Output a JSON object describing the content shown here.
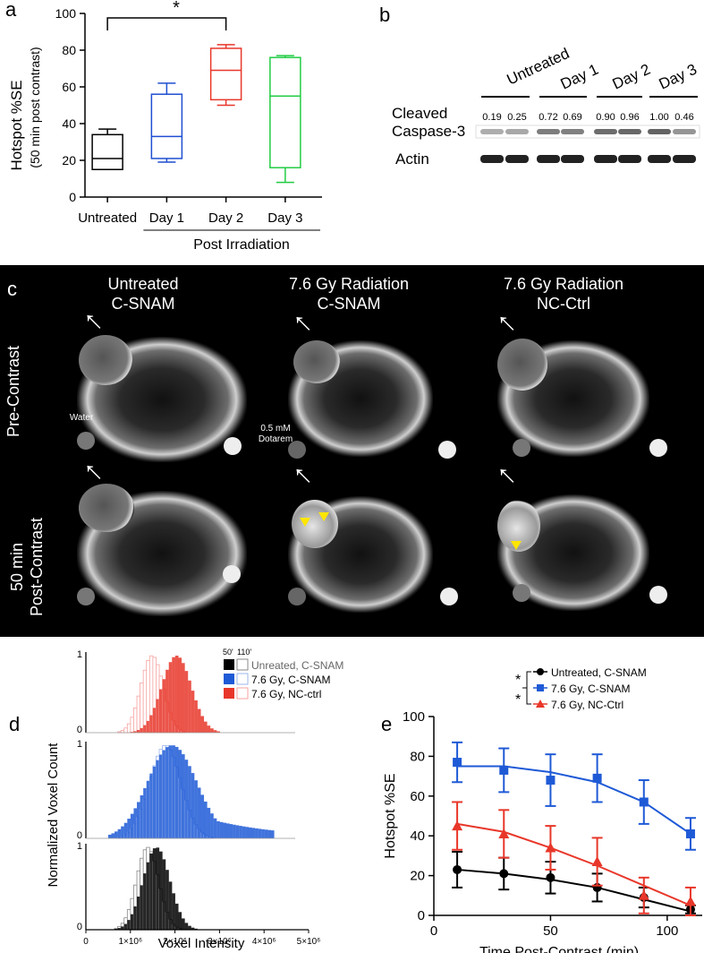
{
  "panel_labels": {
    "a": "a",
    "b": "b",
    "c": "c",
    "d": "d",
    "e": "e"
  },
  "panel_a": {
    "ylabel": "Hotspot %SE",
    "ylabel2": "(50 min post contrast)",
    "yticks": [
      "0",
      "20",
      "40",
      "60",
      "80",
      "100"
    ],
    "sig": "*",
    "group_label": "Post Irradiation"
  },
  "panel_b": {
    "columns": [
      "Untreated",
      "Day 1",
      "Day 2",
      "Day 3"
    ],
    "row1": "Cleaved",
    "row2": "Caspase-3",
    "row3": "Actin",
    "values": [
      "0.19",
      "0.25",
      "0.72",
      "0.69",
      "0.90",
      "0.96",
      "1.00",
      "0.46"
    ]
  },
  "panel_c": {
    "col1": [
      "Untreated",
      "C-SNAM"
    ],
    "col2": [
      "7.6 Gy Radiation",
      "C-SNAM"
    ],
    "col3": [
      "7.6 Gy Radiation",
      "NC-Ctrl"
    ],
    "row1": "Pre-Contrast",
    "row2a": "50 min",
    "row2b": "Post-Contrast",
    "water": "Water",
    "dot1": "0.5 mM",
    "dot2": "Dotarem"
  },
  "panel_d": {
    "ylabel": "Normalized Voxel Count",
    "xlabel": "Voxel Intensity",
    "legend_header_1": "50'",
    "legend_header_2": "110'",
    "legend": [
      "Unreated, C-SNAM",
      "7.6 Gy, C-SNAM",
      "7.6 Gy, NC-ctrl"
    ],
    "xticks": [
      "0",
      "1×10⁶",
      "2×10⁶",
      "3×10⁶",
      "4×10⁶",
      "5×10⁶"
    ],
    "ytick_top": "1",
    "ytick_bottom": "0"
  },
  "chart_data": [
    {
      "type": "box",
      "panel": "a",
      "categories": [
        "Untreated",
        "Day 1",
        "Day 2",
        "Day 3"
      ],
      "colors": [
        "#000000",
        "#1f4fd1",
        "#e8372a",
        "#22cc44"
      ],
      "ylim": [
        0,
        100
      ],
      "boxes": [
        {
          "min": 15,
          "q1": 15,
          "median": 21,
          "q3": 34,
          "max": 37
        },
        {
          "min": 19,
          "q1": 21,
          "median": 33,
          "q3": 56,
          "max": 62
        },
        {
          "min": 50,
          "q1": 53,
          "median": 69,
          "q3": 81,
          "max": 83
        },
        {
          "min": 8,
          "q1": 16,
          "median": 55,
          "q3": 76,
          "max": 77
        }
      ],
      "ylabel": "Hotspot %SE (50 min post contrast)"
    },
    {
      "type": "line",
      "panel": "e",
      "title": "",
      "xlabel": "Time Post-Contrast (min)",
      "ylabel": "Hotspot %SE",
      "xlim": [
        0,
        115
      ],
      "ylim": [
        0,
        100
      ],
      "xticks": [
        0,
        50,
        100
      ],
      "yticks": [
        0,
        20,
        40,
        60,
        80,
        100
      ],
      "x": [
        10,
        30,
        50,
        70,
        90,
        110
      ],
      "series": [
        {
          "name": "Untreated, C-SNAM",
          "color": "#000000",
          "marker": "circle",
          "values": [
            23,
            21,
            19,
            14,
            9,
            3
          ],
          "err": [
            9,
            8,
            8,
            7,
            5,
            2
          ],
          "fit": [
            23,
            21,
            18,
            14,
            8,
            2
          ]
        },
        {
          "name": "7.6 Gy, C-SNAM",
          "color": "#1f5ad6",
          "marker": "square",
          "values": [
            77,
            73,
            68,
            69,
            57,
            41
          ],
          "err": [
            10,
            11,
            13,
            12,
            11,
            8
          ],
          "fit": [
            75,
            75,
            72,
            67,
            57,
            41
          ]
        },
        {
          "name": "7.6 Gy, NC-Ctrl",
          "color": "#e8372a",
          "marker": "triangle",
          "values": [
            45,
            41,
            34,
            27,
            10,
            7
          ],
          "err": [
            12,
            12,
            11,
            12,
            9,
            7
          ],
          "fit": [
            46,
            42,
            34,
            25,
            15,
            5
          ]
        }
      ],
      "sig_marks": [
        "*",
        "*"
      ]
    }
  ]
}
